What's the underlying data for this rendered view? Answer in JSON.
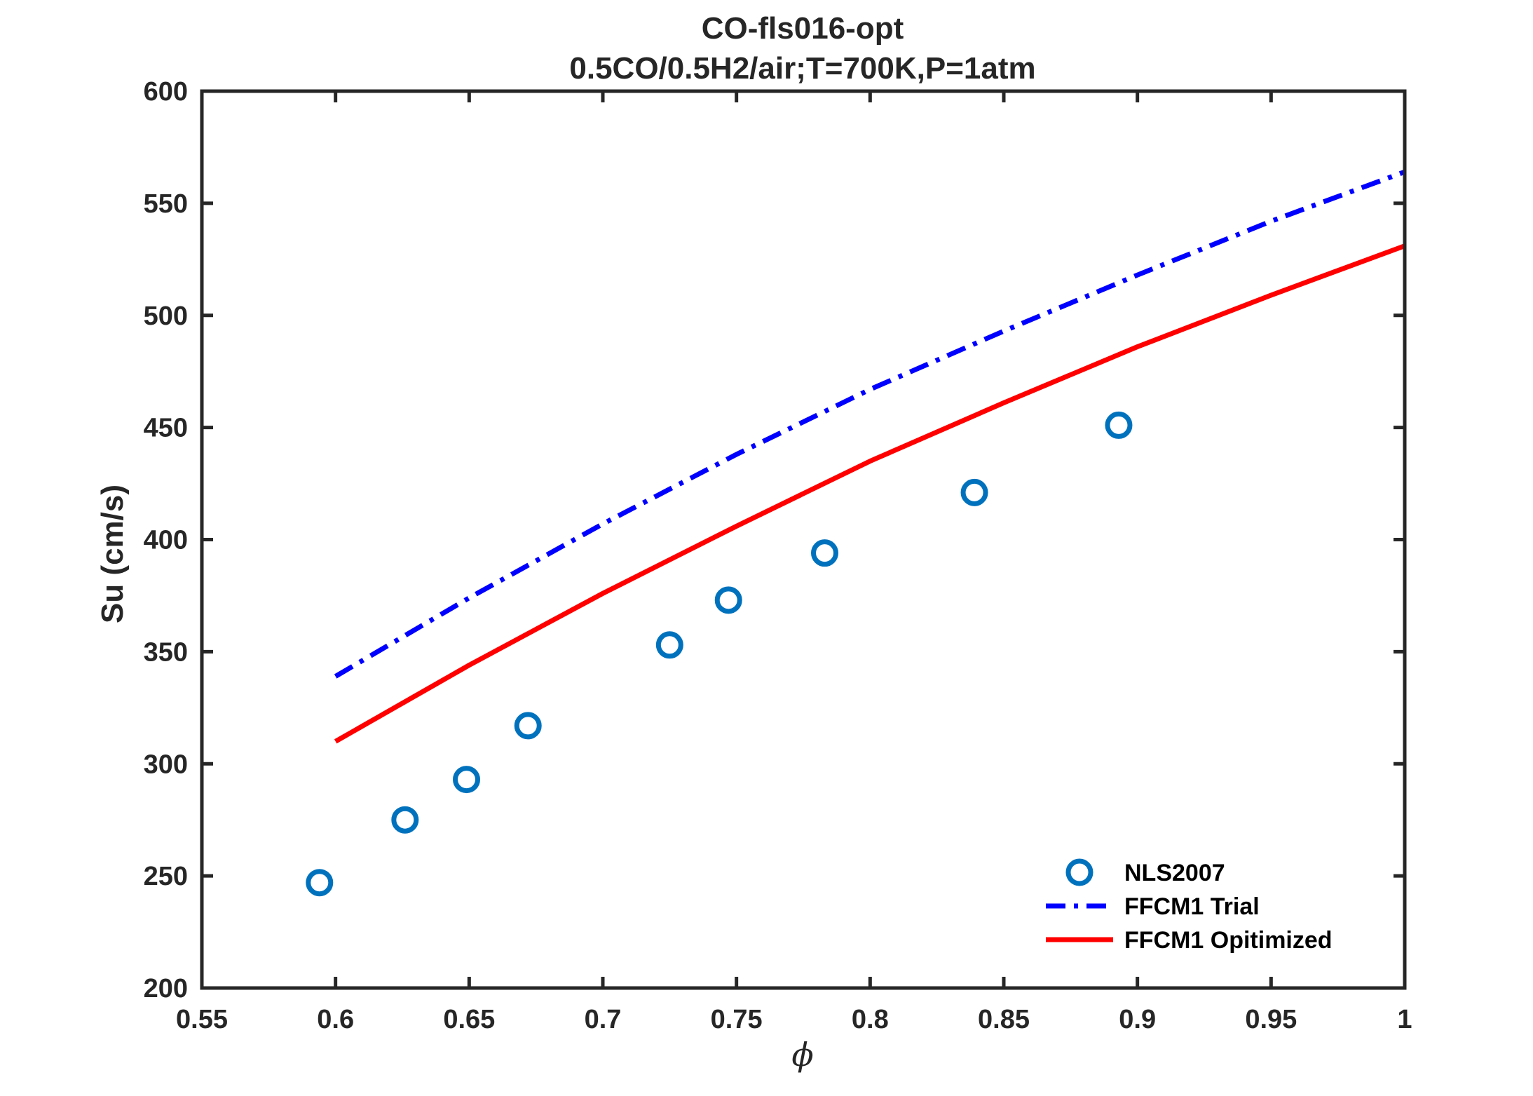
{
  "chart_data": {
    "type": "line",
    "title": "CO-fls016-opt",
    "subtitle": "0.5CO/0.5H2/air;T=700K,P=1atm",
    "xlabel": "ϕ",
    "ylabel": "Su (cm/s)",
    "xlim": [
      0.55,
      1.0
    ],
    "ylim": [
      200,
      600
    ],
    "xticks": [
      0.55,
      0.6,
      0.65,
      0.7,
      0.75,
      0.8,
      0.85,
      0.9,
      0.95,
      1.0
    ],
    "xtick_labels": [
      "0.55",
      "0.6",
      "0.65",
      "0.7",
      "0.75",
      "0.8",
      "0.85",
      "0.9",
      "0.95",
      "1"
    ],
    "yticks": [
      200,
      250,
      300,
      350,
      400,
      450,
      500,
      550,
      600
    ],
    "ytick_labels": [
      "200",
      "250",
      "300",
      "350",
      "400",
      "450",
      "500",
      "550",
      "600"
    ],
    "grid": false,
    "legend_position": "bottom-right",
    "series": [
      {
        "name": "NLS2007",
        "kind": "scatter",
        "marker": "circle",
        "color": "#0072BD",
        "x": [
          0.594,
          0.626,
          0.649,
          0.672,
          0.725,
          0.747,
          0.783,
          0.839,
          0.893
        ],
        "y": [
          247,
          275,
          293,
          317,
          353,
          373,
          394,
          421,
          451
        ]
      },
      {
        "name": "FFCM1 Trial",
        "kind": "line",
        "dash": "dashdot",
        "color": "#0000FF",
        "x": [
          0.6,
          0.65,
          0.7,
          0.75,
          0.8,
          0.85,
          0.9,
          0.95,
          1.0
        ],
        "y": [
          339,
          374,
          407,
          438,
          467,
          493,
          518,
          542,
          564
        ]
      },
      {
        "name": "FFCM1 Opitimized",
        "kind": "line",
        "dash": "solid",
        "color": "#FF0000",
        "x": [
          0.6,
          0.65,
          0.7,
          0.75,
          0.8,
          0.85,
          0.9,
          0.95,
          1.0
        ],
        "y": [
          310,
          344,
          376,
          406,
          435,
          461,
          486,
          509,
          531
        ]
      }
    ]
  }
}
